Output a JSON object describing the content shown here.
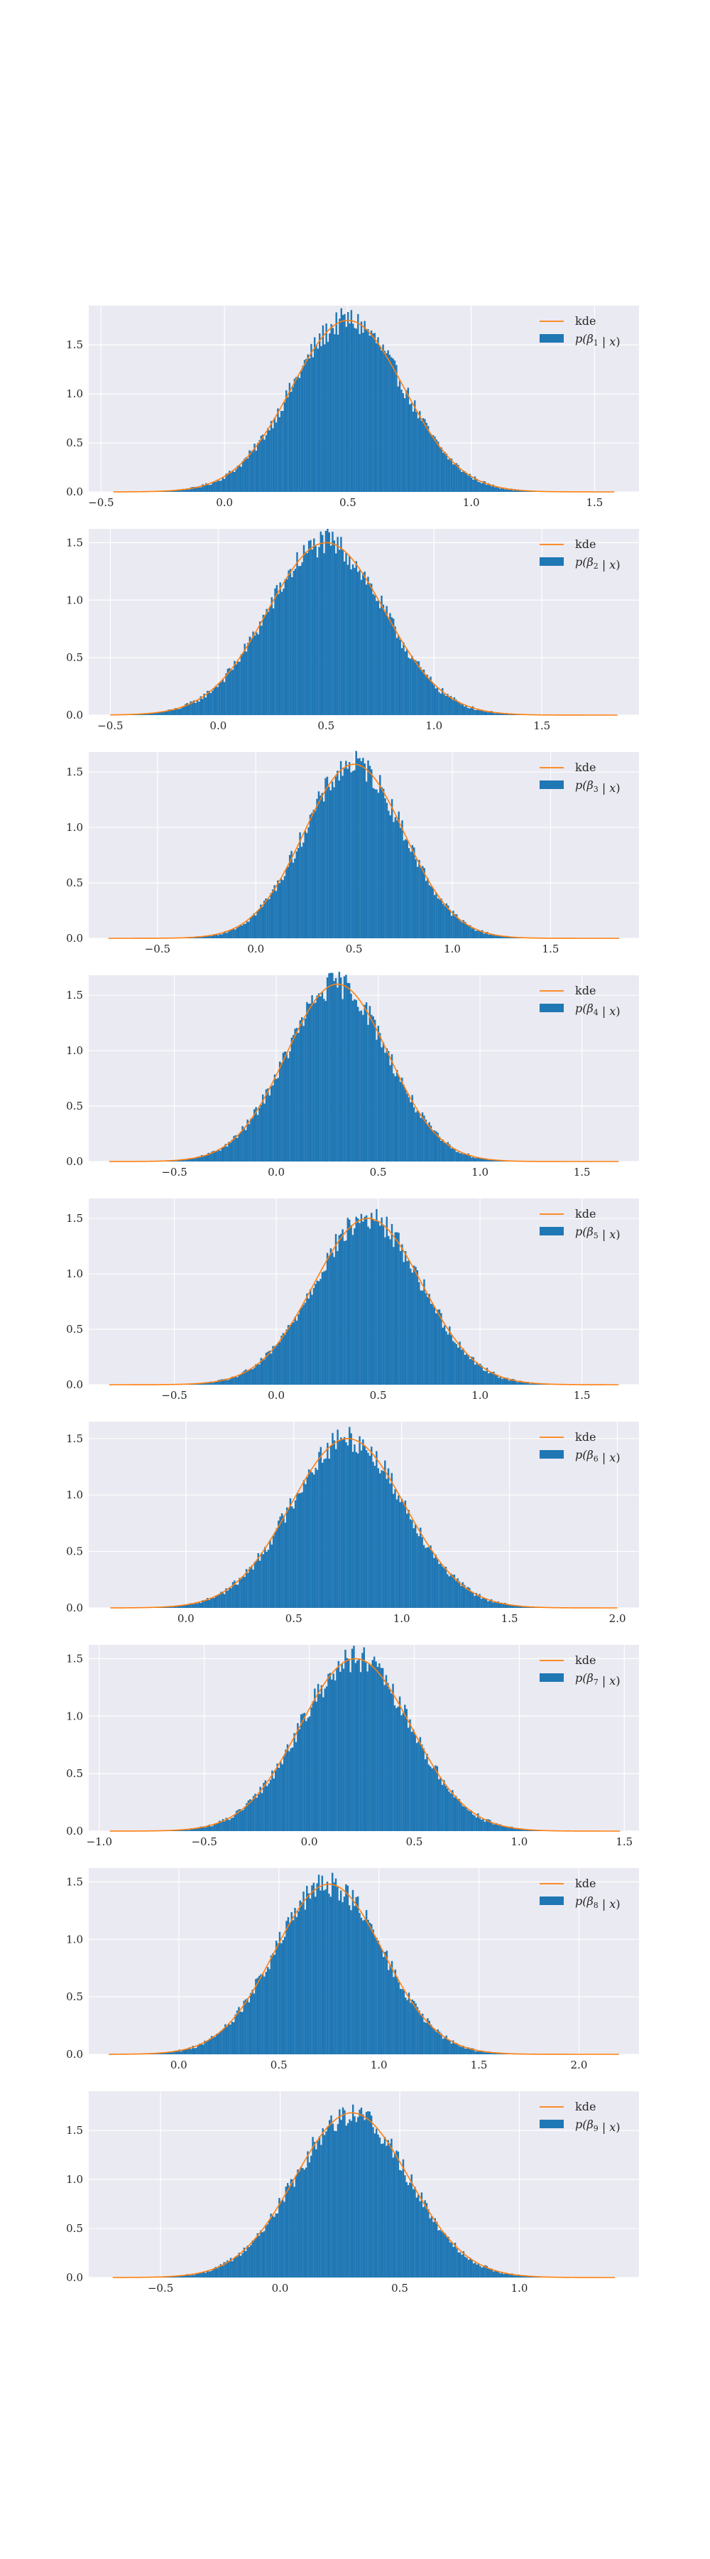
{
  "chart_data": [
    {
      "type": "bar",
      "subtype": "histogram-with-kde",
      "legend": {
        "entries": [
          "kde",
          "p(β1 | x)"
        ],
        "placement": "top-right",
        "math": {
          "sym": "β",
          "sub": "1"
        }
      },
      "xlim": [
        -0.55,
        1.68
      ],
      "ylim": [
        0,
        1.9
      ],
      "xticks": [
        -0.5,
        0.0,
        0.5,
        1.0,
        1.5
      ],
      "xtick_labels": [
        "−0.5",
        "0.0",
        "0.5",
        "1.0",
        "1.5"
      ],
      "yticks": [
        0.0,
        0.5,
        1.0,
        1.5
      ],
      "ytick_labels": [
        "0.0",
        "0.5",
        "1.0",
        "1.5"
      ],
      "distribution": {
        "mean": 0.5,
        "sd": 0.228,
        "peak_density": 1.75
      },
      "support": [
        -0.45,
        1.58
      ],
      "grid": true,
      "colors": {
        "hist": "#1f77b4",
        "kde": "#ff7f0e",
        "background": "#eaeaf2"
      }
    },
    {
      "type": "bar",
      "subtype": "histogram-with-kde",
      "legend": {
        "entries": [
          "kde",
          "p(β2 | x)"
        ],
        "placement": "top-right",
        "math": {
          "sym": "β",
          "sub": "2"
        }
      },
      "xlim": [
        -0.6,
        1.95
      ],
      "ylim": [
        0,
        1.62
      ],
      "xticks": [
        -0.5,
        0.0,
        0.5,
        1.0,
        1.5
      ],
      "xtick_labels": [
        "−0.5",
        "0.0",
        "0.5",
        "1.0",
        "1.5"
      ],
      "yticks": [
        0.0,
        0.5,
        1.0,
        1.5
      ],
      "ytick_labels": [
        "0.0",
        "0.5",
        "1.0",
        "1.5"
      ],
      "distribution": {
        "mean": 0.5,
        "sd": 0.27,
        "peak_density": 1.5
      },
      "support": [
        -0.5,
        1.85
      ],
      "grid": true,
      "colors": {
        "hist": "#1f77b4",
        "kde": "#ff7f0e",
        "background": "#eaeaf2"
      }
    },
    {
      "type": "bar",
      "subtype": "histogram-with-kde",
      "legend": {
        "entries": [
          "kde",
          "p(β3 | x)"
        ],
        "placement": "top-right",
        "math": {
          "sym": "β",
          "sub": "3"
        }
      },
      "xlim": [
        -0.85,
        1.95
      ],
      "ylim": [
        0,
        1.68
      ],
      "xticks": [
        -0.5,
        0.0,
        0.5,
        1.0,
        1.5
      ],
      "xtick_labels": [
        "−0.5",
        "0.0",
        "0.5",
        "1.0",
        "1.5"
      ],
      "yticks": [
        0.0,
        0.5,
        1.0,
        1.5
      ],
      "ytick_labels": [
        "0.0",
        "0.5",
        "1.0",
        "1.5"
      ],
      "distribution": {
        "mean": 0.5,
        "sd": 0.255,
        "peak_density": 1.57
      },
      "support": [
        -0.75,
        1.85
      ],
      "grid": true,
      "colors": {
        "hist": "#1f77b4",
        "kde": "#ff7f0e",
        "background": "#eaeaf2"
      }
    },
    {
      "type": "bar",
      "subtype": "histogram-with-kde",
      "legend": {
        "entries": [
          "kde",
          "p(β4 | x)"
        ],
        "placement": "top-right",
        "math": {
          "sym": "β",
          "sub": "4"
        }
      },
      "xlim": [
        -0.92,
        1.78
      ],
      "ylim": [
        0,
        1.68
      ],
      "xticks": [
        -0.5,
        0.0,
        0.5,
        1.0,
        1.5
      ],
      "xtick_labels": [
        "−0.5",
        "0.0",
        "0.5",
        "1.0",
        "1.5"
      ],
      "yticks": [
        0.0,
        0.5,
        1.0,
        1.5
      ],
      "ytick_labels": [
        "0.0",
        "0.5",
        "1.0",
        "1.5"
      ],
      "distribution": {
        "mean": 0.3,
        "sd": 0.25,
        "peak_density": 1.6
      },
      "support": [
        -0.82,
        1.68
      ],
      "grid": true,
      "colors": {
        "hist": "#1f77b4",
        "kde": "#ff7f0e",
        "background": "#eaeaf2"
      }
    },
    {
      "type": "bar",
      "subtype": "histogram-with-kde",
      "legend": {
        "entries": [
          "kde",
          "p(β5 | x)"
        ],
        "placement": "top-right",
        "math": {
          "sym": "β",
          "sub": "5"
        }
      },
      "xlim": [
        -0.92,
        1.78
      ],
      "ylim": [
        0,
        1.68
      ],
      "xticks": [
        -0.5,
        0.0,
        0.5,
        1.0,
        1.5
      ],
      "xtick_labels": [
        "−0.5",
        "0.0",
        "0.5",
        "1.0",
        "1.5"
      ],
      "yticks": [
        0.0,
        0.5,
        1.0,
        1.5
      ],
      "ytick_labels": [
        "0.0",
        "0.5",
        "1.0",
        "1.5"
      ],
      "distribution": {
        "mean": 0.45,
        "sd": 0.265,
        "peak_density": 1.5
      },
      "support": [
        -0.82,
        1.68
      ],
      "grid": true,
      "colors": {
        "hist": "#1f77b4",
        "kde": "#ff7f0e",
        "background": "#eaeaf2"
      }
    },
    {
      "type": "bar",
      "subtype": "histogram-with-kde",
      "legend": {
        "entries": [
          "kde",
          "p(β6 | x)"
        ],
        "placement": "top-right",
        "math": {
          "sym": "β",
          "sub": "6"
        }
      },
      "xlim": [
        -0.45,
        2.1
      ],
      "ylim": [
        0,
        1.65
      ],
      "xticks": [
        0.0,
        0.5,
        1.0,
        1.5,
        2.0
      ],
      "xtick_labels": [
        "0.0",
        "0.5",
        "1.0",
        "1.5",
        "2.0"
      ],
      "yticks": [
        0.0,
        0.5,
        1.0,
        1.5
      ],
      "ytick_labels": [
        "0.0",
        "0.5",
        "1.0",
        "1.5"
      ],
      "distribution": {
        "mean": 0.75,
        "sd": 0.265,
        "peak_density": 1.5
      },
      "support": [
        -0.35,
        2.0
      ],
      "grid": true,
      "colors": {
        "hist": "#1f77b4",
        "kde": "#ff7f0e",
        "background": "#eaeaf2"
      }
    },
    {
      "type": "bar",
      "subtype": "histogram-with-kde",
      "legend": {
        "entries": [
          "kde",
          "p(β7 | x)"
        ],
        "placement": "top-right",
        "math": {
          "sym": "β",
          "sub": "7"
        }
      },
      "xlim": [
        -1.05,
        1.57
      ],
      "ylim": [
        0,
        1.62
      ],
      "xticks": [
        -1.0,
        -0.5,
        0.0,
        0.5,
        1.0,
        1.5
      ],
      "xtick_labels": [
        "−1.0",
        "−0.5",
        "0.0",
        "0.5",
        "1.0",
        "1.5"
      ],
      "yticks": [
        0.0,
        0.5,
        1.0,
        1.5
      ],
      "ytick_labels": [
        "0.0",
        "0.5",
        "1.0",
        "1.5"
      ],
      "distribution": {
        "mean": 0.22,
        "sd": 0.265,
        "peak_density": 1.5
      },
      "support": [
        -0.95,
        1.48
      ],
      "grid": true,
      "colors": {
        "hist": "#1f77b4",
        "kde": "#ff7f0e",
        "background": "#eaeaf2"
      }
    },
    {
      "type": "bar",
      "subtype": "histogram-with-kde",
      "legend": {
        "entries": [
          "kde",
          "p(β8 | x)"
        ],
        "placement": "top-right",
        "math": {
          "sym": "β",
          "sub": "8"
        }
      },
      "xlim": [
        -0.45,
        2.3
      ],
      "ylim": [
        0,
        1.62
      ],
      "xticks": [
        0.0,
        0.5,
        1.0,
        1.5,
        2.0
      ],
      "xtick_labels": [
        "0.0",
        "0.5",
        "1.0",
        "1.5",
        "2.0"
      ],
      "yticks": [
        0.0,
        0.5,
        1.0,
        1.5
      ],
      "ytick_labels": [
        "0.0",
        "0.5",
        "1.0",
        "1.5"
      ],
      "distribution": {
        "mean": 0.75,
        "sd": 0.27,
        "peak_density": 1.48
      },
      "support": [
        -0.35,
        2.2
      ],
      "grid": true,
      "colors": {
        "hist": "#1f77b4",
        "kde": "#ff7f0e",
        "background": "#eaeaf2"
      }
    },
    {
      "type": "bar",
      "subtype": "histogram-with-kde",
      "legend": {
        "entries": [
          "kde",
          "p(β9 | x)"
        ],
        "placement": "top-right",
        "math": {
          "sym": "β",
          "sub": "9"
        }
      },
      "xlim": [
        -0.8,
        1.5
      ],
      "ylim": [
        0,
        1.9
      ],
      "xticks": [
        -0.5,
        0.0,
        0.5,
        1.0
      ],
      "xtick_labels": [
        "−0.5",
        "0.0",
        "0.5",
        "1.0"
      ],
      "yticks": [
        0.0,
        0.5,
        1.0,
        1.5
      ],
      "ytick_labels": [
        "0.0",
        "0.5",
        "1.0",
        "1.5"
      ],
      "distribution": {
        "mean": 0.3,
        "sd": 0.238,
        "peak_density": 1.68
      },
      "support": [
        -0.7,
        1.4
      ],
      "grid": true,
      "colors": {
        "hist": "#1f77b4",
        "kde": "#ff7f0e",
        "background": "#eaeaf2"
      }
    }
  ]
}
